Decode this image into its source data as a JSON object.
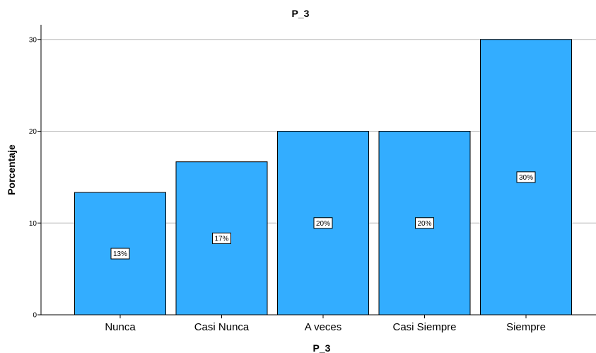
{
  "chart_data": {
    "type": "bar",
    "title": "P_3",
    "xlabel": "P_3",
    "ylabel": "Porcentaje",
    "categories": [
      "Nunca",
      "Casi Nunca",
      "A veces",
      "Casi Siempre",
      "Siempre"
    ],
    "values": [
      13.33,
      16.67,
      20,
      20,
      30
    ],
    "data_labels": [
      "13%",
      "17%",
      "20%",
      "20%",
      "30%"
    ],
    "yticks": [
      0,
      10,
      20,
      30
    ],
    "ylim": [
      0,
      31.6
    ],
    "grid": true,
    "bar_color": "#33adff",
    "bar_edge_color": "#000000",
    "grid_color": "#b8b8b8"
  }
}
